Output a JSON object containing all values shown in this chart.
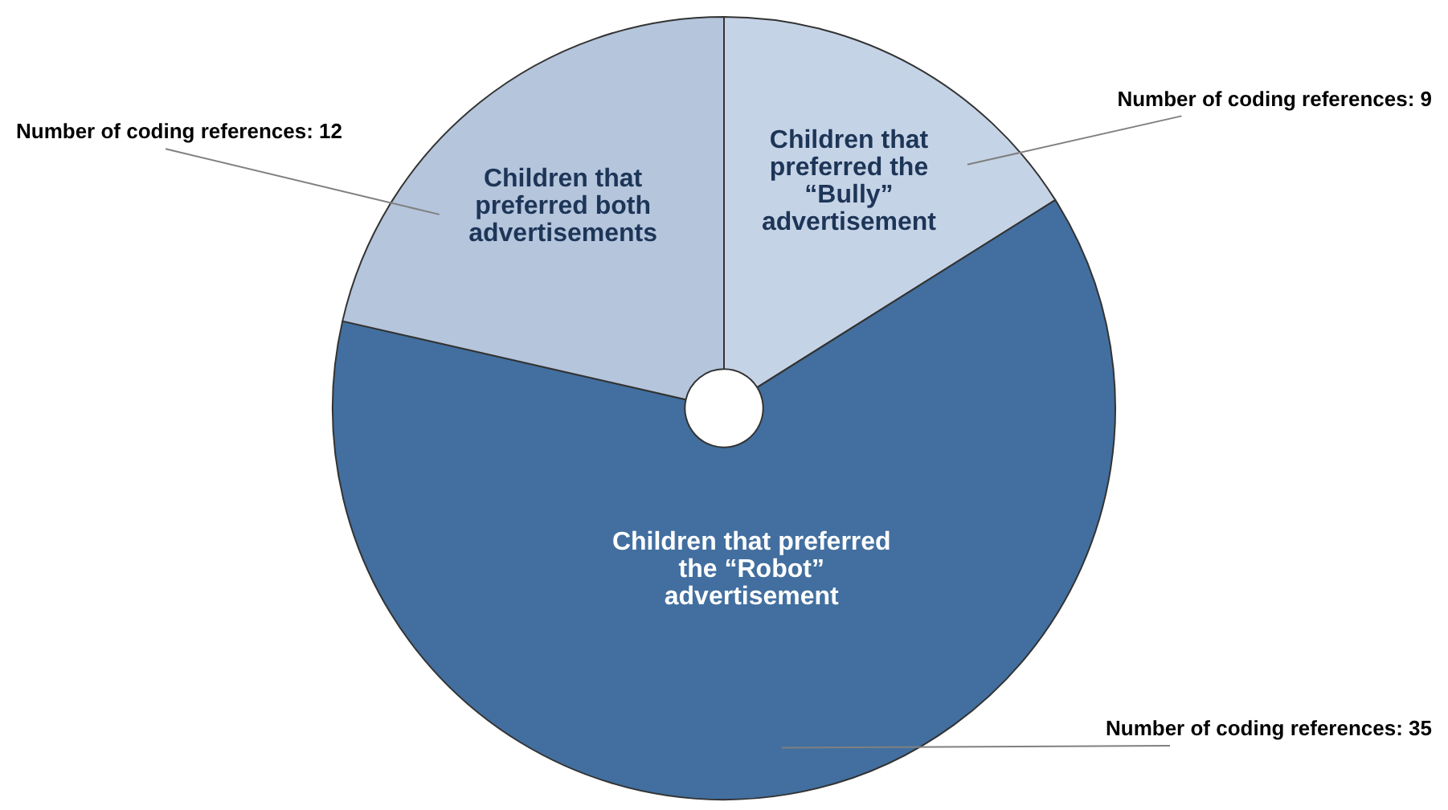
{
  "chart_data": {
    "type": "pie",
    "categories": [
      "Children that preferred the “Bully” advertisement",
      "Children that preferred the “Robot” advertisement",
      "Children that preferred both advertisements"
    ],
    "values": [
      9,
      35,
      12
    ],
    "colors": [
      "#c5d3e6",
      "#426f9f",
      "#b4c5dc"
    ],
    "value_labels": [
      "Number of coding references: 9",
      "Number of coding references: 35",
      "Number of coding references: 12"
    ],
    "legend": false
  }
}
